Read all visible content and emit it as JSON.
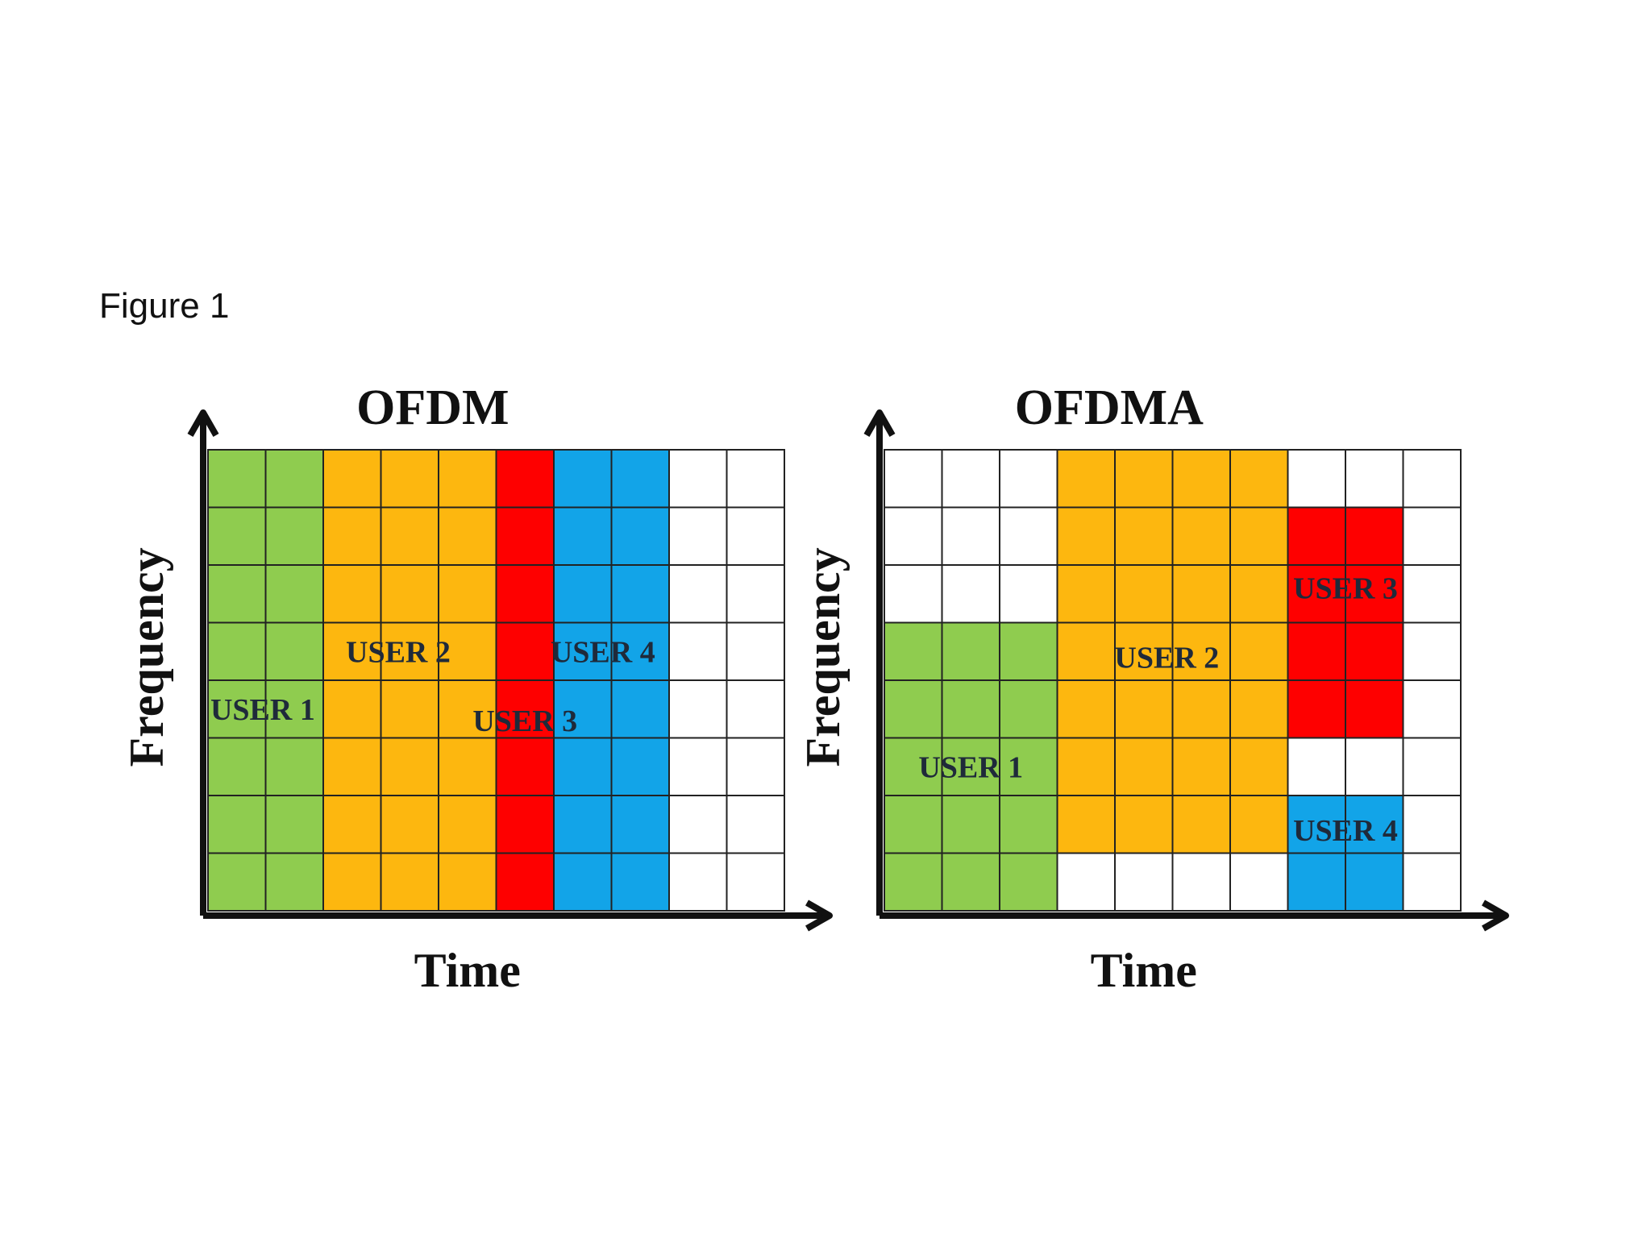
{
  "figure_label": "Figure 1",
  "colors": {
    "green": "#8fcc4f",
    "orange": "#fdb70f",
    "red": "#fe0000",
    "blue": "#12a4e8",
    "empty": "#ffffff",
    "grid": "#222222",
    "axis": "#111111"
  },
  "panels": [
    {
      "id": "ofdm",
      "title": "OFDM",
      "x_axis_label": "Time",
      "y_axis_label": "Frequency",
      "columns": 10,
      "rows": 8,
      "cell_rows": [
        [
          "green",
          "green",
          "orange",
          "orange",
          "orange",
          "red",
          "blue",
          "blue",
          "empty",
          "empty"
        ],
        [
          "green",
          "green",
          "orange",
          "orange",
          "orange",
          "red",
          "blue",
          "blue",
          "empty",
          "empty"
        ],
        [
          "green",
          "green",
          "orange",
          "orange",
          "orange",
          "red",
          "blue",
          "blue",
          "empty",
          "empty"
        ],
        [
          "green",
          "green",
          "orange",
          "orange",
          "orange",
          "red",
          "blue",
          "blue",
          "empty",
          "empty"
        ],
        [
          "green",
          "green",
          "orange",
          "orange",
          "orange",
          "red",
          "blue",
          "blue",
          "empty",
          "empty"
        ],
        [
          "green",
          "green",
          "orange",
          "orange",
          "orange",
          "red",
          "blue",
          "blue",
          "empty",
          "empty"
        ],
        [
          "green",
          "green",
          "orange",
          "orange",
          "orange",
          "red",
          "blue",
          "blue",
          "empty",
          "empty"
        ],
        [
          "green",
          "green",
          "orange",
          "orange",
          "orange",
          "red",
          "blue",
          "blue",
          "empty",
          "empty"
        ]
      ],
      "users": [
        {
          "label": "USER 1",
          "col": 0.95,
          "row": 4.5
        },
        {
          "label": "USER 2",
          "col": 3.3,
          "row": 3.5
        },
        {
          "label": "USER 3",
          "col": 5.5,
          "row": 4.7,
          "small": true
        },
        {
          "label": "USER 4",
          "col": 6.85,
          "row": 3.5
        }
      ]
    },
    {
      "id": "ofdma",
      "title": "OFDMA",
      "x_axis_label": "Time",
      "y_axis_label": "Frequency",
      "columns": 10,
      "rows": 8,
      "cell_rows": [
        [
          "empty",
          "empty",
          "empty",
          "orange",
          "orange",
          "orange",
          "orange",
          "empty",
          "empty",
          "empty"
        ],
        [
          "empty",
          "empty",
          "empty",
          "orange",
          "orange",
          "orange",
          "orange",
          "red",
          "red",
          "empty"
        ],
        [
          "empty",
          "empty",
          "empty",
          "orange",
          "orange",
          "orange",
          "orange",
          "red",
          "red",
          "empty"
        ],
        [
          "green",
          "green",
          "green",
          "orange",
          "orange",
          "orange",
          "orange",
          "red",
          "red",
          "empty"
        ],
        [
          "green",
          "green",
          "green",
          "orange",
          "orange",
          "orange",
          "orange",
          "red",
          "red",
          "empty"
        ],
        [
          "green",
          "green",
          "green",
          "orange",
          "orange",
          "orange",
          "orange",
          "empty",
          "empty",
          "empty"
        ],
        [
          "green",
          "green",
          "green",
          "orange",
          "orange",
          "orange",
          "orange",
          "blue",
          "blue",
          "empty"
        ],
        [
          "green",
          "green",
          "green",
          "empty",
          "empty",
          "empty",
          "empty",
          "blue",
          "blue",
          "empty"
        ]
      ],
      "users": [
        {
          "label": "USER 1",
          "col": 1.5,
          "row": 5.5
        },
        {
          "label": "USER 2",
          "col": 4.9,
          "row": 3.6
        },
        {
          "label": "USER 3",
          "col": 8.0,
          "row": 2.4
        },
        {
          "label": "USER 4",
          "col": 8.0,
          "row": 6.6
        }
      ]
    }
  ]
}
